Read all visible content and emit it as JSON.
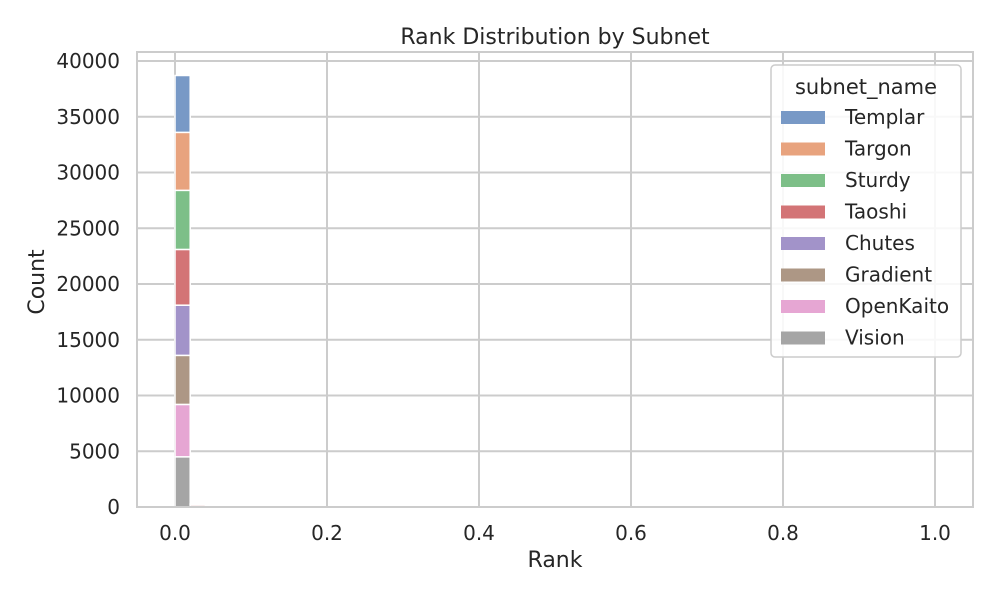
{
  "chart_data": {
    "type": "bar",
    "stacked": true,
    "title": "Rank Distribution by Subnet",
    "xlabel": "Rank",
    "ylabel": "Count",
    "xlim": [
      -0.05,
      1.05
    ],
    "ylim": [
      0,
      40000
    ],
    "x_ticks": [
      0.0,
      0.2,
      0.4,
      0.6,
      0.8,
      1.0
    ],
    "x_tick_labels": [
      "0.0",
      "0.2",
      "0.4",
      "0.6",
      "0.8",
      "1.0"
    ],
    "y_ticks": [
      0,
      5000,
      10000,
      15000,
      20000,
      25000,
      30000,
      35000,
      40000
    ],
    "y_tick_labels": [
      "0",
      "5000",
      "10000",
      "15000",
      "20000",
      "25000",
      "30000",
      "35000",
      "40000"
    ],
    "grid": true,
    "legend": {
      "title": "subnet_name",
      "placement": "top-right"
    },
    "bin_edges": [
      0.0,
      0.02,
      0.04
    ],
    "series": [
      {
        "name": "Vision",
        "color": "#a5a5a5",
        "values": [
          4500,
          20
        ]
      },
      {
        "name": "OpenKaito",
        "color": "#e6a6d3",
        "values": [
          4700,
          20
        ]
      },
      {
        "name": "Gradient",
        "color": "#ad9785",
        "values": [
          4400,
          20
        ]
      },
      {
        "name": "Chutes",
        "color": "#a293c9",
        "values": [
          4500,
          20
        ]
      },
      {
        "name": "Taoshi",
        "color": "#d37476",
        "values": [
          5000,
          150
        ]
      },
      {
        "name": "Sturdy",
        "color": "#7dbf88",
        "values": [
          5300,
          20
        ]
      },
      {
        "name": "Targon",
        "color": "#e8a37e",
        "values": [
          5200,
          20
        ]
      },
      {
        "name": "Templar",
        "color": "#7899c6",
        "values": [
          5100,
          20
        ]
      }
    ],
    "legend_order": [
      "Templar",
      "Targon",
      "Sturdy",
      "Taoshi",
      "Chutes",
      "Gradient",
      "OpenKaito",
      "Vision"
    ]
  }
}
